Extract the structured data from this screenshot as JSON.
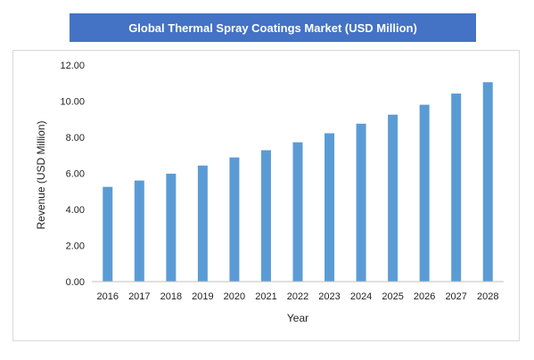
{
  "chart_data": {
    "type": "bar",
    "title": "Global Thermal Spray Coatings Market (USD Million)",
    "xlabel": "Year",
    "ylabel": "Revenue (USD Million)",
    "categories": [
      "2016",
      "2017",
      "2018",
      "2019",
      "2020",
      "2021",
      "2022",
      "2023",
      "2024",
      "2025",
      "2026",
      "2027",
      "2028"
    ],
    "series": [
      {
        "values": [
          5.25,
          5.6,
          5.98,
          6.43,
          6.88,
          7.28,
          7.72,
          8.22,
          8.75,
          9.25,
          9.8,
          10.42,
          11.05
        ]
      }
    ],
    "ylim": [
      0,
      12
    ],
    "yticks": [
      "0.00",
      "2.00",
      "4.00",
      "6.00",
      "8.00",
      "10.00",
      "12.00"
    ],
    "grid": false,
    "bar_color": "#5b9bd5"
  }
}
